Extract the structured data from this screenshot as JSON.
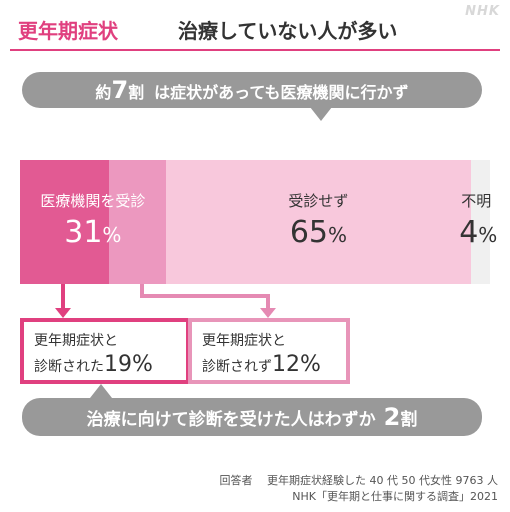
{
  "title": {
    "accent": "更年期症状",
    "main": "治療していない人が多い"
  },
  "watermark": "NHK",
  "callout_top": {
    "prefix": "約",
    "number": "7",
    "suffix": "割",
    "text": "は症状があっても医療機関に行かず"
  },
  "callout_bottom": {
    "text": "治療に向けて診断を受けた人はわずか",
    "number": "2",
    "suffix": "割"
  },
  "chart_data": {
    "type": "bar",
    "orientation": "horizontal-stacked",
    "categories": [
      "医療機関を受診",
      "受診せず",
      "不明"
    ],
    "values": [
      31,
      65,
      4
    ],
    "unit": "%",
    "colors": [
      "#e25a93",
      "#f8c8dc",
      "#f0f0f0"
    ],
    "breakdown": {
      "parent": "医療機関を受診",
      "items": [
        {
          "line1": "更年期症状と",
          "line2": "診断された",
          "value": 19,
          "color": "#e25a93"
        },
        {
          "line1": "更年期症状と",
          "line2": "診断されず",
          "value": 12,
          "color": "#ec98bf"
        }
      ]
    }
  },
  "footer": {
    "line1": "回答者　 更年期症状経験した 40 代 50 代女性 9763 人",
    "line2": "NHK「更年期と仕事に関する調査」2021"
  }
}
